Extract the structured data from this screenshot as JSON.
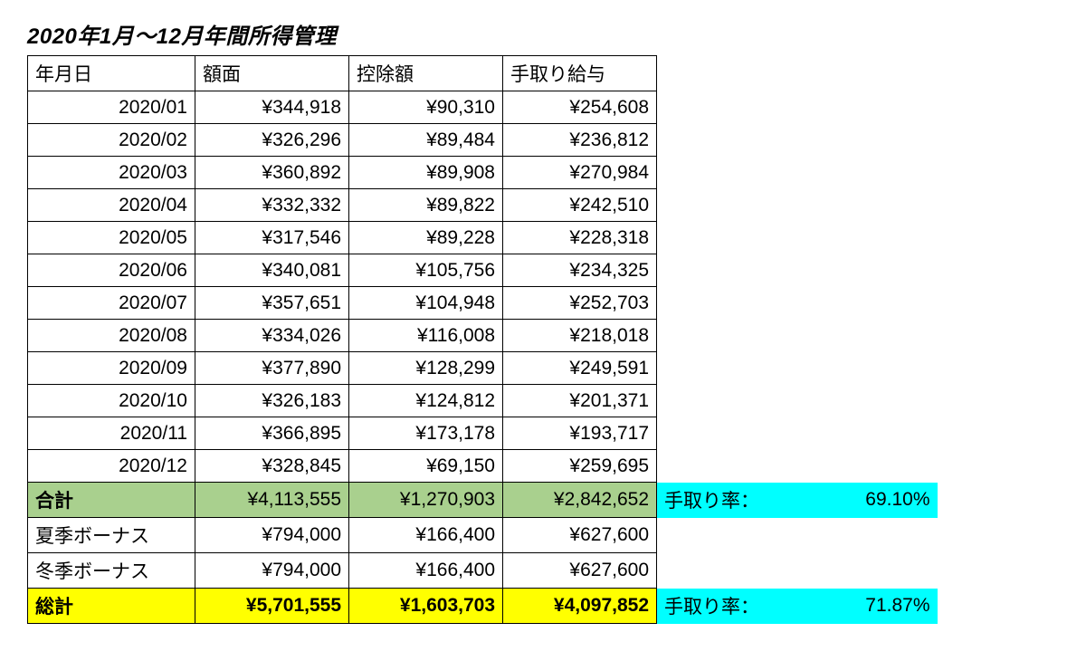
{
  "title": "2020年1月～12月年間所得管理",
  "headers": {
    "date": "年月日",
    "gross": "額面",
    "deduct": "控除額",
    "net": "手取り給与"
  },
  "rows": [
    {
      "date": "2020/01",
      "gross": "¥344,918",
      "deduct": "¥90,310",
      "net": "¥254,608"
    },
    {
      "date": "2020/02",
      "gross": "¥326,296",
      "deduct": "¥89,484",
      "net": "¥236,812"
    },
    {
      "date": "2020/03",
      "gross": "¥360,892",
      "deduct": "¥89,908",
      "net": "¥270,984"
    },
    {
      "date": "2020/04",
      "gross": "¥332,332",
      "deduct": "¥89,822",
      "net": "¥242,510"
    },
    {
      "date": "2020/05",
      "gross": "¥317,546",
      "deduct": "¥89,228",
      "net": "¥228,318"
    },
    {
      "date": "2020/06",
      "gross": "¥340,081",
      "deduct": "¥105,756",
      "net": "¥234,325"
    },
    {
      "date": "2020/07",
      "gross": "¥357,651",
      "deduct": "¥104,948",
      "net": "¥252,703"
    },
    {
      "date": "2020/08",
      "gross": "¥334,026",
      "deduct": "¥116,008",
      "net": "¥218,018"
    },
    {
      "date": "2020/09",
      "gross": "¥377,890",
      "deduct": "¥128,299",
      "net": "¥249,591"
    },
    {
      "date": "2020/10",
      "gross": "¥326,183",
      "deduct": "¥124,812",
      "net": "¥201,371"
    },
    {
      "date": "2020/11",
      "gross": "¥366,895",
      "deduct": "¥173,178",
      "net": "¥193,717"
    },
    {
      "date": "2020/12",
      "gross": "¥328,845",
      "deduct": "¥69,150",
      "net": "¥259,695"
    }
  ],
  "subtotal": {
    "label": "合計",
    "gross": "¥4,113,555",
    "deduct": "¥1,270,903",
    "net": "¥2,842,652",
    "rate_label": "手取り率：",
    "rate": "69.10%"
  },
  "bonus_summer": {
    "label": "夏季ボーナス",
    "gross": "¥794,000",
    "deduct": "¥166,400",
    "net": "¥627,600"
  },
  "bonus_winter": {
    "label": "冬季ボーナス",
    "gross": "¥794,000",
    "deduct": "¥166,400",
    "net": "¥627,600"
  },
  "grandtotal": {
    "label": "総計",
    "gross": "¥5,701,555",
    "deduct": "¥1,603,703",
    "net": "¥4,097,852",
    "rate_label": "手取り率：",
    "rate": "71.87%"
  },
  "colors": {
    "green": "#a9d08e",
    "yellow": "#ffff00",
    "cyan": "#00ffff",
    "border": "#000000",
    "bg": "#ffffff"
  }
}
